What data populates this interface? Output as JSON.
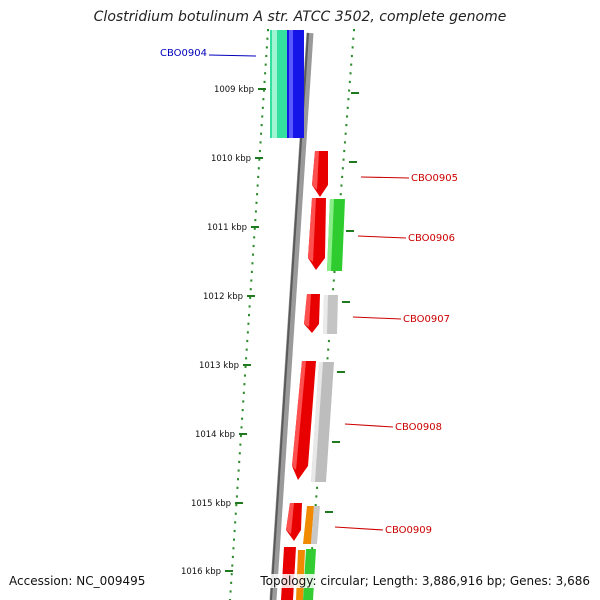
{
  "title": "Clostridium botulinum A str. ATCC 3502, complete genome",
  "footer": {
    "accession": "Accession: NC_009495",
    "summary": "Topology: circular; Length: 3,886,916 bp; Genes: 3,686"
  },
  "colors": {
    "backbone": "#777777",
    "tick": "#1f7a1f",
    "dot": "#2e8b2e",
    "label_left": "#0000bb",
    "label_right": "#cc0000"
  },
  "scale": {
    "unit": "kbp",
    "ticks": [
      "1009 kbp",
      "1010 kbp",
      "1011 kbp",
      "1012 kbp",
      "1013 kbp",
      "1014 kbp",
      "1015 kbp",
      "1016 kbp"
    ]
  },
  "gene_labels": [
    {
      "text": "CBO0904",
      "side": "left"
    },
    {
      "text": "CBO0905",
      "side": "right"
    },
    {
      "text": "CBO0906",
      "side": "right"
    },
    {
      "text": "CBO0907",
      "side": "right"
    },
    {
      "text": "CBO0908",
      "side": "right"
    },
    {
      "text": "CBO0909",
      "side": "right"
    }
  ]
}
